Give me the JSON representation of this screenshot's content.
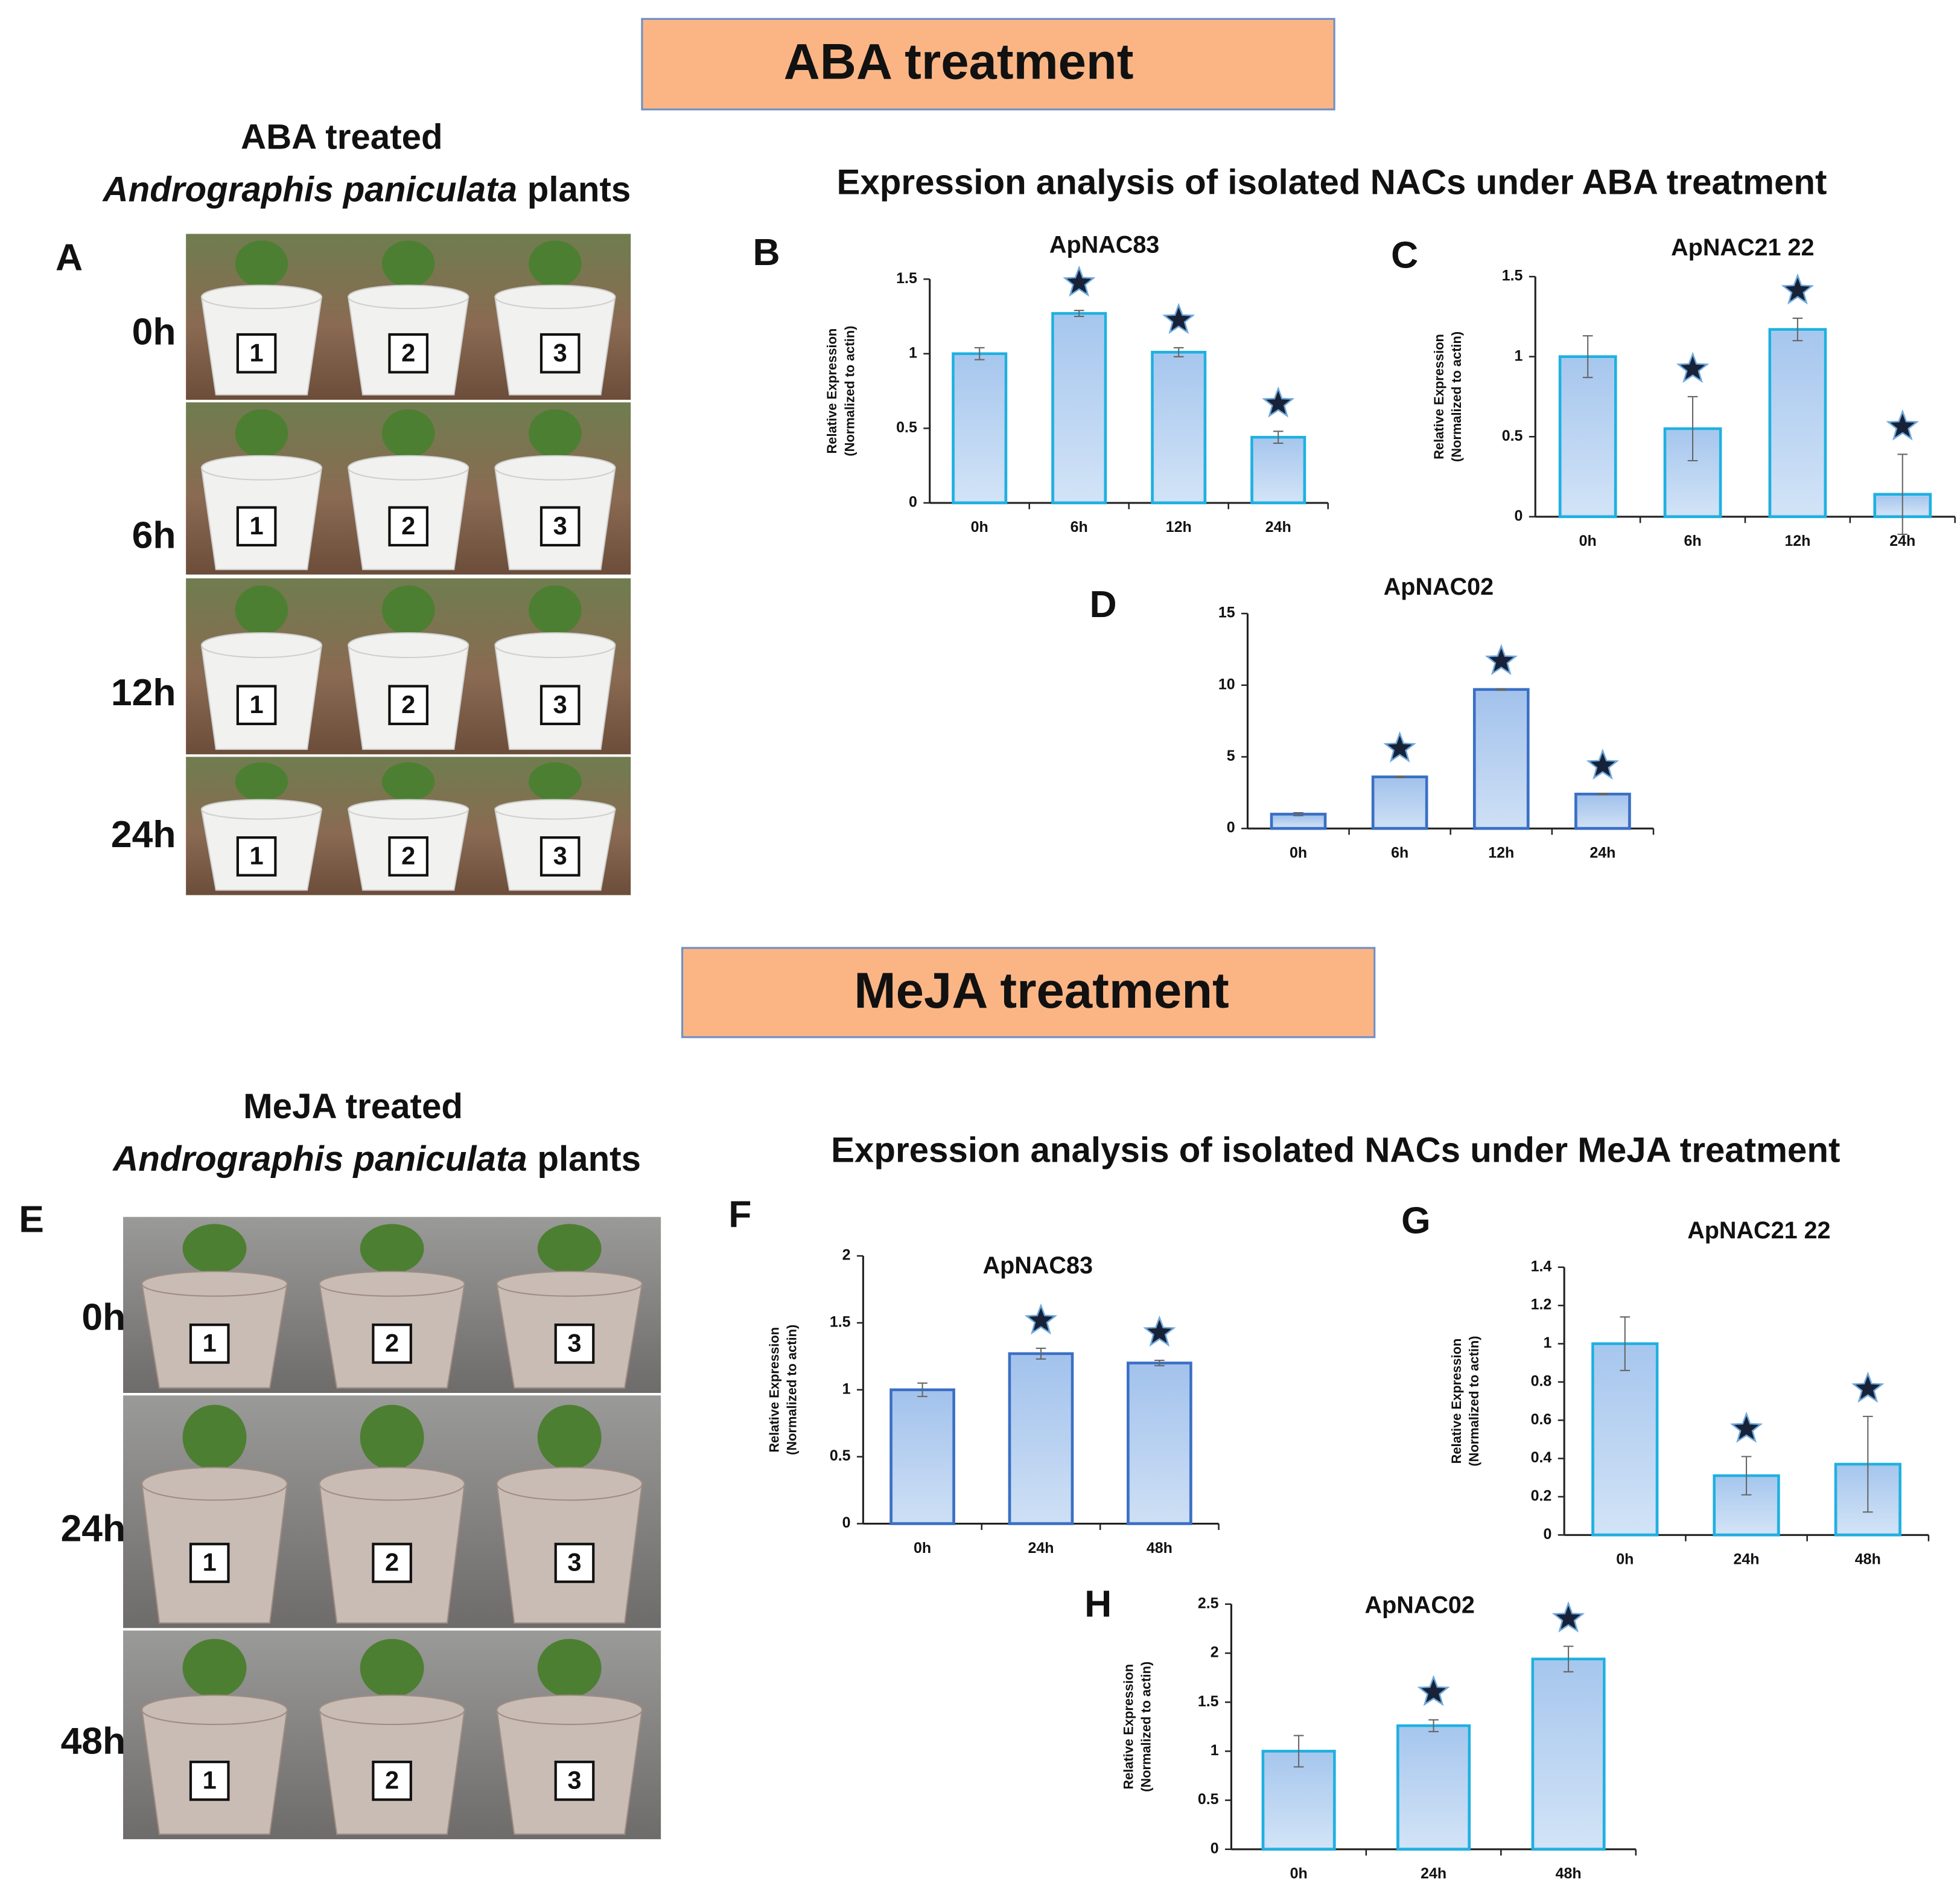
{
  "headers": [
    "ABA treatment",
    "MeJA treatment"
  ],
  "photos": [
    {
      "panel": "A",
      "title": "ABA treated",
      "species": "Andrographis paniculata",
      "suffix": "plants",
      "rows": [
        "0h",
        "6h",
        "12h",
        "24h"
      ],
      "pot_labels": [
        "1",
        "2",
        "3"
      ]
    },
    {
      "panel": "E",
      "title": "MeJA treated",
      "species": "Andrographis paniculata",
      "suffix": "plants",
      "rows": [
        "0h",
        "24h",
        "48h"
      ],
      "pot_labels": [
        "1",
        "2",
        "3"
      ]
    }
  ],
  "analysis_titles": [
    "Expression analysis of isolated NACs under ABA treatment",
    "Expression analysis of isolated NACs under MeJA treatment"
  ],
  "chart_data": [
    {
      "type": "bar",
      "panel": "B",
      "title": "ApNAC83",
      "ylabel": [
        "Relative Expression",
        "(Normalized to actin)"
      ],
      "categories": [
        "0h",
        "6h",
        "12h",
        "24h"
      ],
      "values": [
        1.0,
        1.27,
        1.01,
        0.44
      ],
      "errors": [
        0.04,
        0.02,
        0.03,
        0.04
      ],
      "significant": [
        false,
        true,
        true,
        true
      ],
      "ylim": [
        0,
        1.5
      ],
      "yticks": [
        0,
        0.5,
        1,
        1.5
      ],
      "color": "#b3d0f0",
      "edge_color": "#1fb0e0"
    },
    {
      "type": "bar",
      "panel": "C",
      "title": "ApNAC21 22",
      "ylabel": [
        "Relative Expression",
        "(Normalized to actin)"
      ],
      "categories": [
        "0h",
        "6h",
        "12h",
        "24h"
      ],
      "values": [
        1.0,
        0.55,
        1.17,
        0.14
      ],
      "errors": [
        0.13,
        0.2,
        0.07,
        0.25
      ],
      "significant": [
        false,
        true,
        true,
        true
      ],
      "ylim": [
        0,
        1.5
      ],
      "yticks": [
        0,
        0.5,
        1,
        1.5
      ],
      "color": "#b3d0f0",
      "edge_color": "#1fb0e0"
    },
    {
      "type": "bar",
      "panel": "D",
      "title": "ApNAC02",
      "categories": [
        "0h",
        "6h",
        "12h",
        "24h"
      ],
      "values": [
        1.0,
        3.6,
        9.7,
        2.4
      ],
      "errors": [
        0.1,
        0.05,
        0.05,
        0.05
      ],
      "significant": [
        false,
        true,
        true,
        true
      ],
      "ylim": [
        0,
        15
      ],
      "yticks": [
        0,
        5,
        10,
        15
      ],
      "color": "#a9c6ec",
      "edge_color": "#3a6fc4"
    },
    {
      "type": "bar",
      "panel": "F",
      "title": "ApNAC83",
      "ylabel": [
        "Relative Expression",
        "(Normalized to actin)"
      ],
      "categories": [
        "0h",
        "24h",
        "48h"
      ],
      "values": [
        1.0,
        1.27,
        1.2
      ],
      "errors": [
        0.05,
        0.04,
        0.02
      ],
      "significant": [
        false,
        true,
        true
      ],
      "ylim": [
        0,
        2
      ],
      "yticks": [
        0,
        0.5,
        1,
        1.5,
        2
      ],
      "color": "#a9c6ec",
      "edge_color": "#3a6fc4"
    },
    {
      "type": "bar",
      "panel": "G",
      "title": "ApNAC21 22",
      "ylabel": [
        "Relative Expression",
        "(Normalized to actin)"
      ],
      "categories": [
        "0h",
        "24h",
        "48h"
      ],
      "values": [
        1.0,
        0.31,
        0.37
      ],
      "errors": [
        0.14,
        0.1,
        0.25
      ],
      "significant": [
        false,
        true,
        true
      ],
      "ylim": [
        0,
        1.4
      ],
      "yticks": [
        0,
        0.2,
        0.4,
        0.6,
        0.8,
        1,
        1.2,
        1.4
      ],
      "color": "#b3d0f0",
      "edge_color": "#1fb0e0"
    },
    {
      "type": "bar",
      "panel": "H",
      "title": "ApNAC02",
      "ylabel": [
        "Relative Expression",
        "(Normalized to actin)"
      ],
      "categories": [
        "0h",
        "24h",
        "48h"
      ],
      "values": [
        1.0,
        1.26,
        1.94
      ],
      "errors": [
        0.16,
        0.06,
        0.13
      ],
      "significant": [
        false,
        true,
        true
      ],
      "ylim": [
        0,
        2.5
      ],
      "yticks": [
        0,
        0.5,
        1,
        1.5,
        2,
        2.5
      ],
      "color": "#b3d0f0",
      "edge_color": "#1fb0e0"
    }
  ]
}
